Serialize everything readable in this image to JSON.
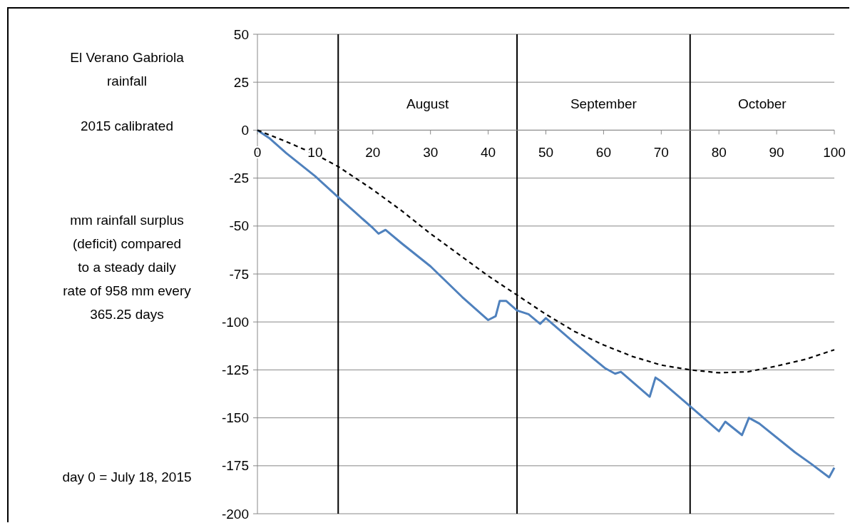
{
  "chart_data": {
    "type": "line",
    "title": "El Verano Gabriola rainfall",
    "subtitle": "2015 calibrated",
    "ylabel": "mm rainfall surplus (deficit) compared to a  steady daily rate of 958 mm every 365.25 days",
    "annotations": [
      "August",
      "September",
      "October",
      "day 0 = July 18, 2015"
    ],
    "xlim": [
      0,
      100
    ],
    "xticks": [
      0,
      10,
      20,
      30,
      40,
      50,
      60,
      70,
      80,
      90,
      100
    ],
    "ylim": [
      -200,
      50
    ],
    "yticks": [
      -200,
      -175,
      -150,
      -125,
      -100,
      -75,
      -50,
      -25,
      0,
      25,
      50
    ],
    "grid": "y",
    "ref_lines": [
      {
        "axis": "x",
        "value": 14,
        "color": "#000000"
      },
      {
        "axis": "x",
        "value": 45,
        "color": "#000000"
      },
      {
        "axis": "x",
        "value": 75,
        "color": "#000000"
      }
    ],
    "series": [
      {
        "color": "#4f81bd",
        "line_style": "solid",
        "x": [
          0,
          2,
          5,
          10,
          14,
          17,
          20,
          21,
          22.2,
          25,
          30,
          35.5,
          40,
          41.3,
          42,
          43.1,
          45,
          47,
          49,
          50,
          55,
          60.2,
          62,
          63,
          68,
          69,
          70,
          75,
          80,
          81.1,
          84,
          85.2,
          87,
          93.2,
          96,
          99.1,
          100
        ],
        "values": [
          0,
          -4,
          -12,
          -24,
          -35,
          -43,
          -51,
          -54,
          -52,
          -59,
          -71,
          -87,
          -99,
          -97,
          -89,
          -89,
          -94,
          -96,
          -101,
          -98,
          -111,
          -124,
          -127,
          -126,
          -139,
          -129,
          -131,
          -144,
          -157,
          -152,
          -159,
          -150,
          -153,
          -168,
          -174,
          -181,
          -176
        ]
      },
      {
        "color": "#000000",
        "line_style": "dashed",
        "x": [
          0,
          5,
          10,
          14,
          20,
          25,
          30,
          35,
          40,
          45,
          50,
          55,
          60,
          65,
          70,
          75,
          80,
          85,
          90,
          95,
          100
        ],
        "values": [
          0,
          -6,
          -12.5,
          -19,
          -31,
          -42,
          -54,
          -65,
          -76,
          -86,
          -96,
          -105,
          -112,
          -118,
          -122.5,
          -125,
          -126.5,
          -126,
          -123,
          -119.5,
          -114.5
        ]
      }
    ]
  }
}
